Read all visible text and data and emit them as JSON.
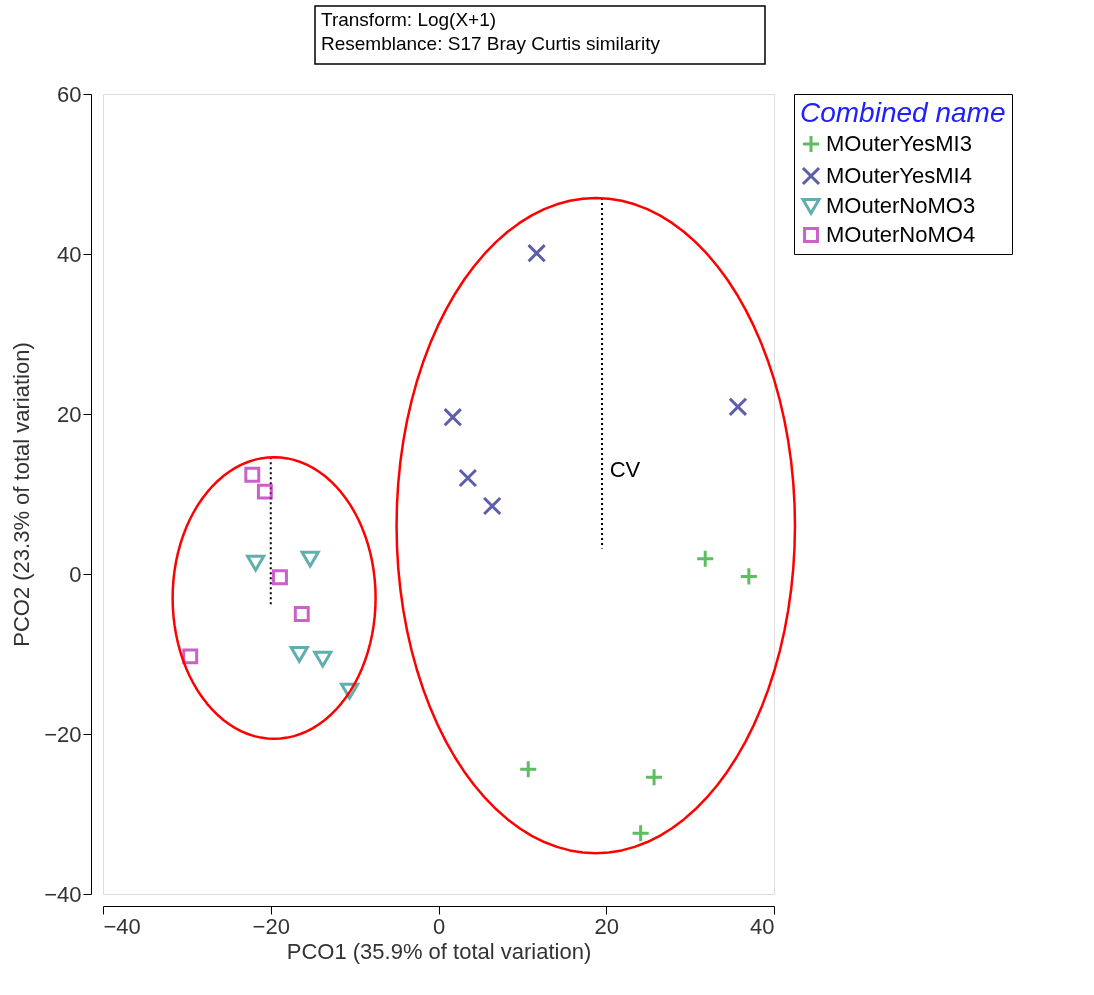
{
  "chart_data": {
    "type": "scatter",
    "xlabel": "PCO1 (35.9% of total variation)",
    "ylabel": "PCO2 (23.3% of total variation)",
    "legend_title": "Combined name",
    "legend": "top right",
    "grid": false,
    "xlim": [
      -40,
      40
    ],
    "xticks": [
      -40,
      -20,
      0,
      20,
      40
    ],
    "ylim": [
      -40,
      60
    ],
    "yticks": [
      -40,
      -20,
      0,
      20,
      40,
      60
    ],
    "annotations": [
      "Transform: Log(X+1)",
      "Resemblance: S17 Bray Curtis similarity",
      "CV"
    ],
    "series": [
      {
        "name": "MOuterYesMI3",
        "marker": "cross",
        "color": "#1ea01e",
        "x": [
          31.8,
          37.0,
          10.7,
          25.7,
          24.1
        ],
        "values": [
          1.9,
          -0.3,
          -24.4,
          -25.4,
          -32.4
        ]
      },
      {
        "name": "MOuterYesMI4",
        "marker": "x",
        "color": "#1a1a8c",
        "x": [
          11.7,
          1.7,
          3.5,
          6.4,
          35.7
        ],
        "values": [
          40.1,
          19.6,
          12.0,
          8.5,
          20.9
        ]
      },
      {
        "name": "MOuterNoMO3",
        "marker": "triangle-down",
        "color": "#1e8c8c",
        "x": [
          -21.8,
          -15.3,
          -16.6,
          -13.8,
          -10.6
        ],
        "values": [
          1.4,
          1.9,
          -10.0,
          -10.6,
          -14.6
        ]
      },
      {
        "name": "MOuterNoMO4",
        "marker": "square",
        "color": "#b41eb4",
        "x": [
          -22.2,
          -20.7,
          -18.9,
          -16.3,
          -29.6
        ],
        "values": [
          12.4,
          10.3,
          -0.4,
          -5.0,
          -10.3
        ]
      },
      {
        "type": "line",
        "line_style": "dotted",
        "color": "#000000",
        "x": [
          -20,
          -20
        ],
        "values": [
          14.6,
          -3.8
        ]
      },
      {
        "type": "line",
        "line_style": "dotted",
        "color": "#000000",
        "x": [
          19.5,
          19.5
        ],
        "values": [
          47.0,
          3.2
        ]
      }
    ]
  }
}
